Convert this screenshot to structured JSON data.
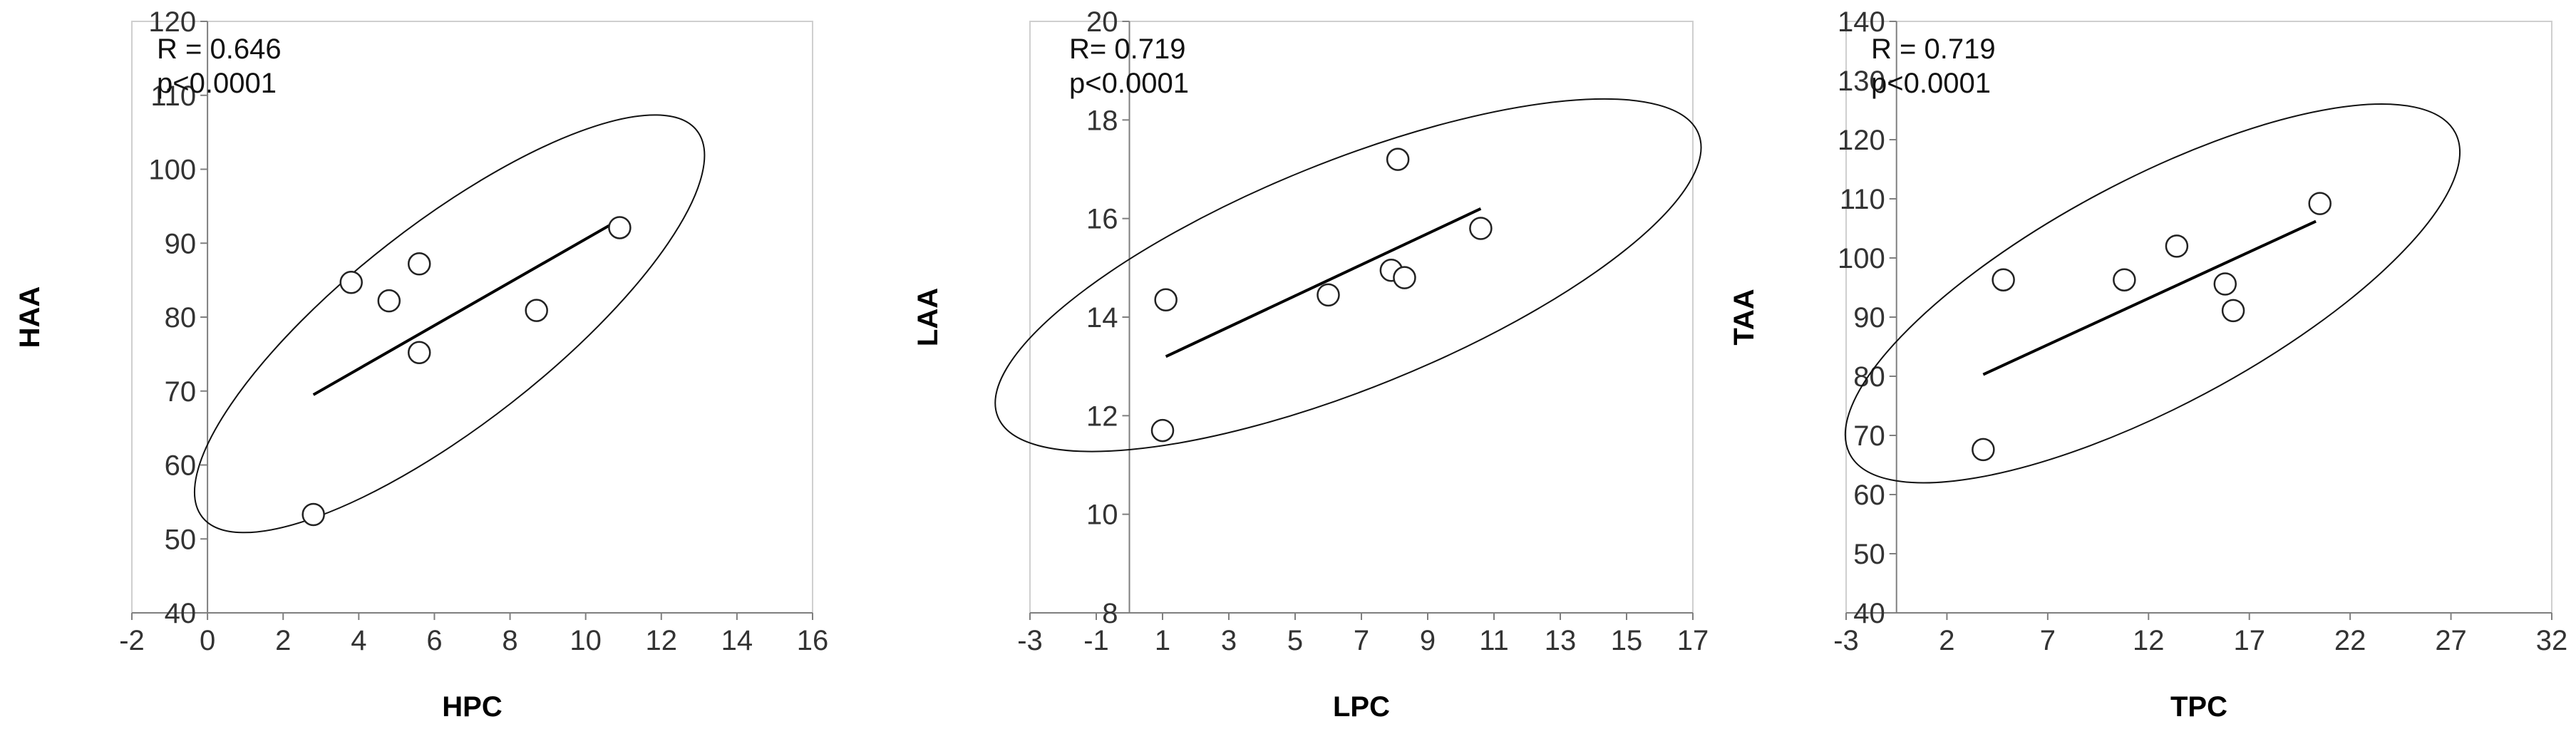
{
  "chart_data": [
    {
      "type": "scatter",
      "title": "",
      "xlabel": "HPC",
      "ylabel": "HAA",
      "xlim": [
        -2,
        16
      ],
      "ylim": [
        40,
        120
      ],
      "x_ticks": [
        -2,
        0,
        2,
        4,
        6,
        8,
        10,
        12,
        14,
        16
      ],
      "y_ticks": [
        40,
        50,
        60,
        70,
        80,
        90,
        100,
        110,
        120
      ],
      "annotations": [
        "R = 0.646",
        "p<0.0001"
      ],
      "points": [
        {
          "x": 2.8,
          "y": 53.3
        },
        {
          "x": 3.8,
          "y": 84.7
        },
        {
          "x": 4.8,
          "y": 82.2
        },
        {
          "x": 5.6,
          "y": 87.2
        },
        {
          "x": 5.6,
          "y": 75.2
        },
        {
          "x": 8.7,
          "y": 80.9
        },
        {
          "x": 10.9,
          "y": 92.1
        }
      ],
      "fit_line": {
        "x": [
          2.8,
          10.9
        ],
        "y": [
          69.5,
          93.2
        ]
      },
      "ellipse": {
        "cx": 6.4,
        "cy": 79.1,
        "rx": 8.3,
        "ry_ratio": 0.32,
        "angle_deg": -38
      },
      "grid": false
    },
    {
      "type": "scatter",
      "title": "",
      "xlabel": "LPC",
      "ylabel": "LAA",
      "xlim": [
        -3,
        17
      ],
      "ylim": [
        8,
        20
      ],
      "y_axis_at_x": 0,
      "x_ticks": [
        -3,
        -1,
        1,
        3,
        5,
        7,
        9,
        11,
        13,
        15,
        17
      ],
      "y_ticks": [
        8,
        10,
        12,
        14,
        16,
        18,
        20
      ],
      "annotations": [
        "R= 0.719",
        "p<0.0001"
      ],
      "points": [
        {
          "x": 1.0,
          "y": 11.7
        },
        {
          "x": 1.1,
          "y": 14.35
        },
        {
          "x": 6.0,
          "y": 14.45
        },
        {
          "x": 7.9,
          "y": 14.95
        },
        {
          "x": 8.3,
          "y": 14.8
        },
        {
          "x": 8.1,
          "y": 17.2
        },
        {
          "x": 10.6,
          "y": 15.8
        }
      ],
      "fit_line": {
        "x": [
          1.1,
          10.6
        ],
        "y": [
          13.2,
          16.2
        ]
      },
      "ellipse": {
        "cx": 6.6,
        "cy": 14.85,
        "rx": 11.4,
        "ry_ratio": 0.3,
        "angle_deg": -22
      },
      "grid": false
    },
    {
      "type": "scatter",
      "title": "",
      "xlabel": "TPC",
      "ylabel": "TAA",
      "xlim": [
        -3,
        32
      ],
      "ylim": [
        40,
        140
      ],
      "y_axis_at_x": -0.5,
      "x_ticks": [
        -3,
        2,
        7,
        12,
        17,
        22,
        27,
        32
      ],
      "y_ticks": [
        40,
        50,
        60,
        70,
        80,
        90,
        100,
        110,
        120,
        130,
        140
      ],
      "annotations": [
        "R = 0.719",
        "p<0.0001"
      ],
      "points": [
        {
          "x": 3.8,
          "y": 67.6
        },
        {
          "x": 4.8,
          "y": 96.3
        },
        {
          "x": 10.8,
          "y": 96.3
        },
        {
          "x": 13.4,
          "y": 102.0
        },
        {
          "x": 15.8,
          "y": 95.6
        },
        {
          "x": 16.2,
          "y": 91.1
        },
        {
          "x": 20.5,
          "y": 109.2
        }
      ],
      "fit_line": {
        "x": [
          3.8,
          20.3
        ],
        "y": [
          80.3,
          106.2
        ]
      },
      "ellipse": {
        "cx": 12.2,
        "cy": 94.0,
        "rx": 17.0,
        "ry_ratio": 0.33,
        "angle_deg": -28
      },
      "grid": false
    }
  ]
}
